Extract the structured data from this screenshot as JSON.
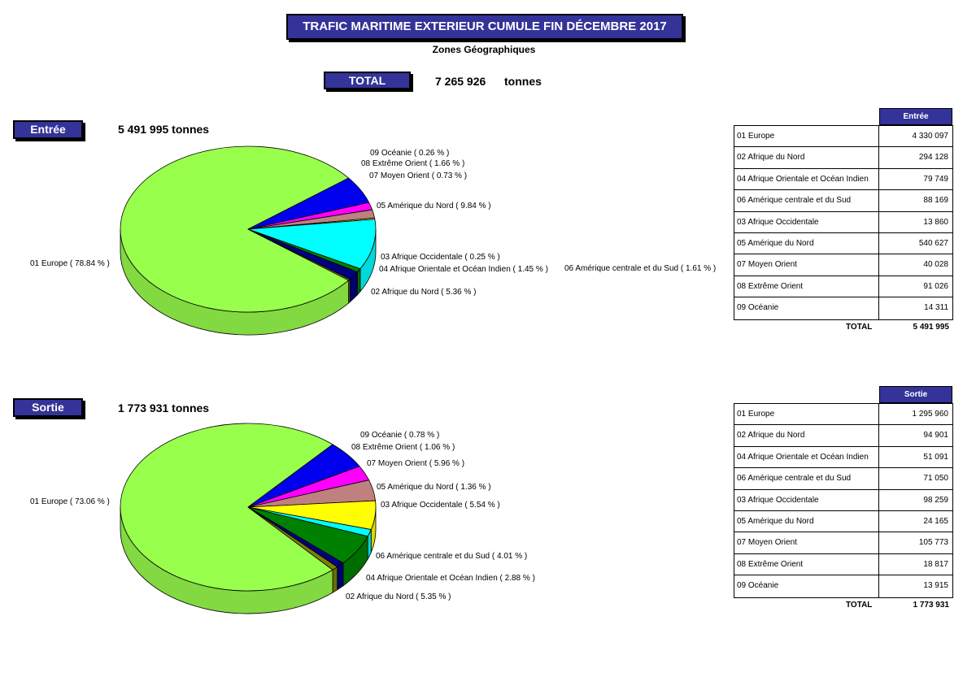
{
  "title": "TRAFIC MARITIME EXTERIEUR CUMULE FIN  DÉCEMBRE 2017",
  "subtitle": "Zones Géographiques",
  "total": {
    "label": "TOTAL",
    "value": "7 265 926",
    "unit": "tonnes"
  },
  "colors": {
    "header": "#333399"
  },
  "chart_data": [
    {
      "type": "pie",
      "title": "Entrée",
      "total": "5 491 995 tonnes",
      "slices": [
        {
          "label": "01 Europe",
          "pct_text": "( 78.84 % )",
          "value": 78.84,
          "color": "#99ff4d"
        },
        {
          "label": "02 Afrique du Nord",
          "pct_text": "( 5.36 % )",
          "value": 5.36,
          "color": "#0000ee"
        },
        {
          "label": "04 Afrique Orientale et Océan Indien",
          "pct_text": "( 1.45 % )",
          "value": 1.45,
          "color": "#ff00ff"
        },
        {
          "label": "06 Amérique centrale et du Sud",
          "pct_text": "( 1.61 % )",
          "value": 1.61,
          "color": "#c08080"
        },
        {
          "label": "03 Afrique Occidentale",
          "pct_text": "( 0.25 % )",
          "value": 0.25,
          "color": "#ffff00"
        },
        {
          "label": "05 Amérique du Nord",
          "pct_text": "( 9.84 % )",
          "value": 9.84,
          "color": "#00ffff"
        },
        {
          "label": "07 Moyen Orient",
          "pct_text": "( 0.73 % )",
          "value": 0.73,
          "color": "#008000"
        },
        {
          "label": "08 Extrême Orient",
          "pct_text": "( 1.66 % )",
          "value": 1.66,
          "color": "#000080"
        },
        {
          "label": "09 Océanie",
          "pct_text": "( 0.26 % )",
          "value": 0.26,
          "color": "#808000"
        }
      ],
      "table": {
        "header": "Entrée",
        "rows": [
          {
            "name": "01 Europe",
            "value": "4 330 097"
          },
          {
            "name": "02 Afrique du Nord",
            "value": "294 128"
          },
          {
            "name": "04 Afrique Orientale et Océan Indien",
            "value": "79 749"
          },
          {
            "name": "06 Amérique centrale et du Sud",
            "value": "88 169"
          },
          {
            "name": "03 Afrique Occidentale",
            "value": "13 860"
          },
          {
            "name": "05 Amérique du Nord",
            "value": "540 627"
          },
          {
            "name": "07 Moyen Orient",
            "value": "40 028"
          },
          {
            "name": "08 Extrême Orient",
            "value": "91 026"
          },
          {
            "name": "09 Océanie",
            "value": "14 311"
          }
        ],
        "total_label": "TOTAL",
        "total_value": "5 491 995"
      }
    },
    {
      "type": "pie",
      "title": "Sortie",
      "total": "1 773 931 tonnes",
      "slices": [
        {
          "label": "01 Europe",
          "pct_text": "( 73.06 % )",
          "value": 73.06,
          "color": "#99ff4d"
        },
        {
          "label": "02 Afrique du Nord",
          "pct_text": "( 5.35 % )",
          "value": 5.35,
          "color": "#0000ee"
        },
        {
          "label": "04 Afrique Orientale et Océan Indien",
          "pct_text": "( 2.88 % )",
          "value": 2.88,
          "color": "#ff00ff"
        },
        {
          "label": "06 Amérique centrale et du Sud",
          "pct_text": "( 4.01 % )",
          "value": 4.01,
          "color": "#c08080"
        },
        {
          "label": "03 Afrique Occidentale",
          "pct_text": "( 5.54 % )",
          "value": 5.54,
          "color": "#ffff00"
        },
        {
          "label": "05 Amérique du Nord",
          "pct_text": "( 1.36 % )",
          "value": 1.36,
          "color": "#00ffff"
        },
        {
          "label": "07 Moyen Orient",
          "pct_text": "( 5.96 % )",
          "value": 5.96,
          "color": "#008000"
        },
        {
          "label": "08 Extrême Orient",
          "pct_text": "( 1.06 % )",
          "value": 1.06,
          "color": "#000080"
        },
        {
          "label": "09 Océanie",
          "pct_text": "( 0.78 % )",
          "value": 0.78,
          "color": "#808000"
        }
      ],
      "table": {
        "header": "Sortie",
        "rows": [
          {
            "name": "01 Europe",
            "value": "1 295 960"
          },
          {
            "name": "02 Afrique du Nord",
            "value": "94 901"
          },
          {
            "name": "04 Afrique Orientale et Océan Indien",
            "value": "51 091"
          },
          {
            "name": "06 Amérique centrale et du Sud",
            "value": "71 050"
          },
          {
            "name": "03 Afrique Occidentale",
            "value": "98 259"
          },
          {
            "name": "05 Amérique du Nord",
            "value": "24 165"
          },
          {
            "name": "07 Moyen Orient",
            "value": "105 773"
          },
          {
            "name": "08 Extrême Orient",
            "value": "18 817"
          },
          {
            "name": "09 Océanie",
            "value": "13 915"
          }
        ],
        "total_label": "TOTAL",
        "total_value": "1 773 931"
      }
    }
  ]
}
